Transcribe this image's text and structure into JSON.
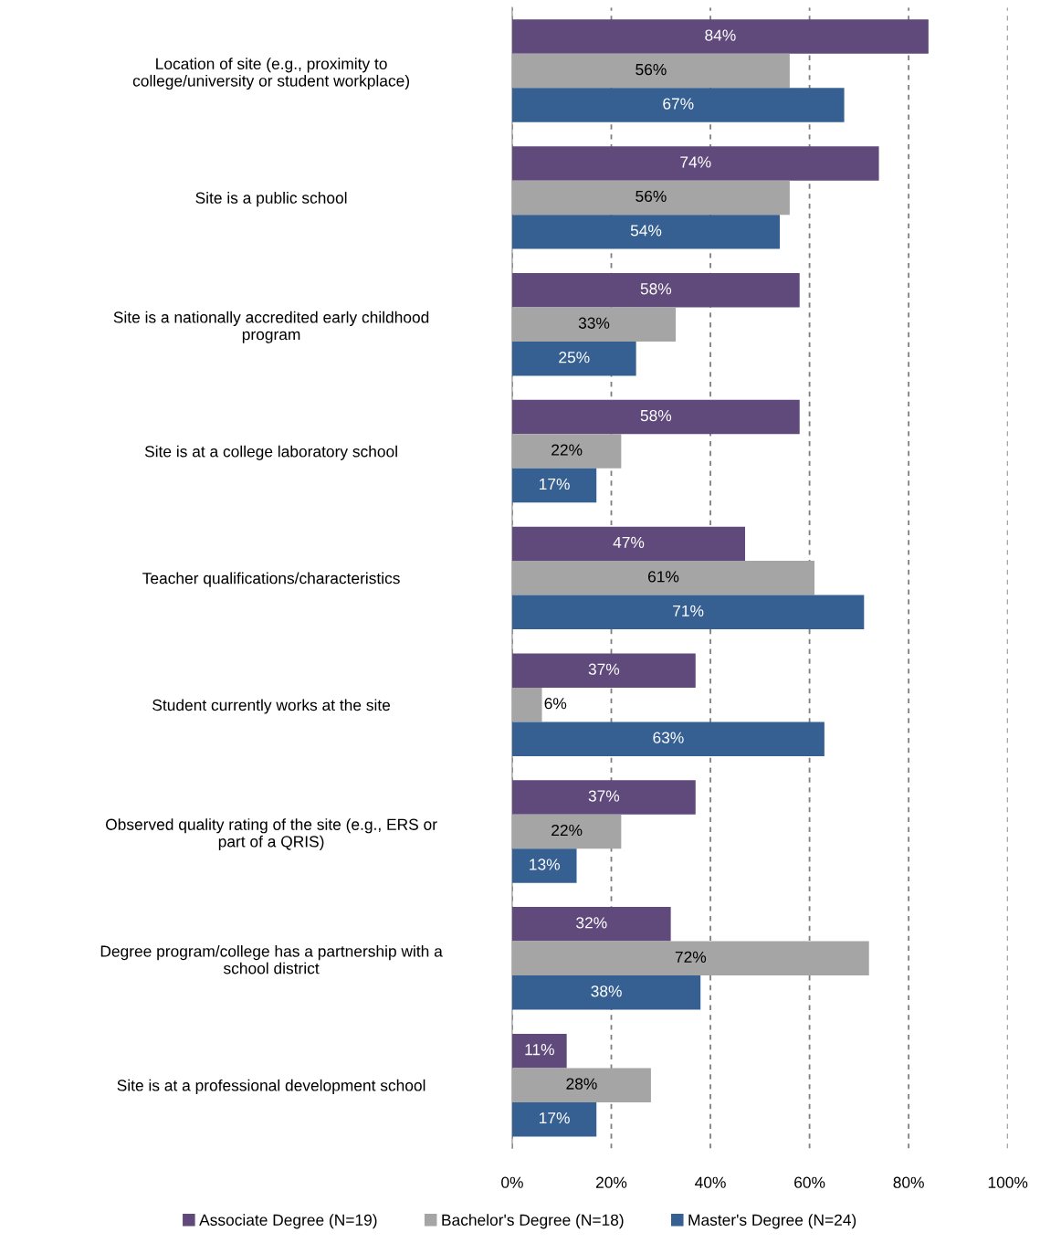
{
  "chart_data": {
    "type": "bar",
    "orientation": "horizontal",
    "categories": [
      "Location of site (e.g., proximity to\ncollege/university or student workplace)",
      "Site is a public school",
      "Site is a nationally accredited early childhood\nprogram",
      "Site is at a college laboratory school",
      "Teacher qualifications/characteristics",
      "Student currently works at the site",
      "Observed quality rating of the site (e.g., ERS or\npart of a QRIS)",
      "Degree program/college has a partnership with a\nschool district",
      "Site is at a professional development school"
    ],
    "series": [
      {
        "name": "Associate Degree (N=19)",
        "color": "#604a7b",
        "values": [
          84,
          74,
          58,
          58,
          47,
          37,
          37,
          32,
          11
        ],
        "value_labels": [
          "84%",
          "74%",
          "58%",
          "58%",
          "47%",
          "37%",
          "37%",
          "32%",
          "11%"
        ]
      },
      {
        "name": "Bachelor's Degree (N=18)",
        "color": "#a5a5a5",
        "values": [
          56,
          56,
          33,
          22,
          61,
          6,
          22,
          72,
          28
        ],
        "value_labels": [
          "56%",
          "56%",
          "33%",
          "22%",
          "61%",
          "6%",
          "22%",
          "72%",
          "28%"
        ]
      },
      {
        "name": "Master's Degree (N=24)",
        "color": "#366092",
        "values": [
          67,
          54,
          25,
          17,
          71,
          63,
          13,
          38,
          17
        ],
        "value_labels": [
          "67%",
          "54%",
          "25%",
          "17%",
          "71%",
          "63%",
          "13%",
          "38%",
          "17%"
        ]
      }
    ],
    "xlim": [
      0,
      100
    ],
    "xticks": [
      {
        "value": 0,
        "label": "0%"
      },
      {
        "value": 20,
        "label": "20%"
      },
      {
        "value": 40,
        "label": "40%"
      },
      {
        "value": 60,
        "label": "60%"
      },
      {
        "value": 80,
        "label": "80%"
      },
      {
        "value": 100,
        "label": "100%"
      }
    ],
    "grid": "x",
    "legend": "bottom"
  }
}
